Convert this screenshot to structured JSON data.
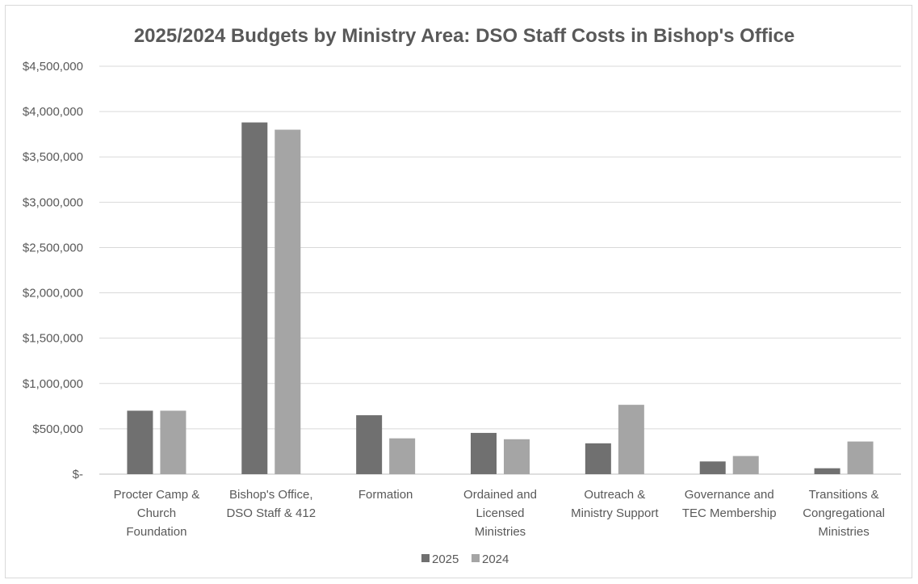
{
  "chart_data": {
    "type": "bar",
    "title": "2025/2024 Budgets by Ministry Area: DSO Staff Costs in Bishop's Office",
    "xlabel": "",
    "ylabel": "",
    "ylim": [
      0,
      4500000
    ],
    "y_ticks": [
      0,
      500000,
      1000000,
      1500000,
      2000000,
      2500000,
      3000000,
      3500000,
      4000000,
      4500000
    ],
    "y_tick_labels": [
      "$-",
      "$500,000",
      "$1,000,000",
      "$1,500,000",
      "$2,000,000",
      "$2,500,000",
      "$3,000,000",
      "$3,500,000",
      "$4,000,000",
      "$4,500,000"
    ],
    "grid": true,
    "legend_position": "bottom",
    "categories": [
      [
        "Procter Camp &",
        "Church",
        "Foundation"
      ],
      [
        "Bishop's Office,",
        "DSO Staff & 412"
      ],
      [
        "Formation"
      ],
      [
        "Ordained and",
        "Licensed",
        "Ministries"
      ],
      [
        "Outreach &",
        "Ministry Support"
      ],
      [
        "Governance and",
        "TEC Membership"
      ],
      [
        "Transitions &",
        "Congregational",
        "Ministries"
      ]
    ],
    "series": [
      {
        "name": "2025",
        "color": "#707070",
        "values": [
          700000,
          3880000,
          650000,
          455000,
          340000,
          140000,
          65000
        ]
      },
      {
        "name": "2024",
        "color": "#a5a5a5",
        "values": [
          700000,
          3800000,
          395000,
          385000,
          765000,
          200000,
          360000
        ]
      }
    ]
  }
}
